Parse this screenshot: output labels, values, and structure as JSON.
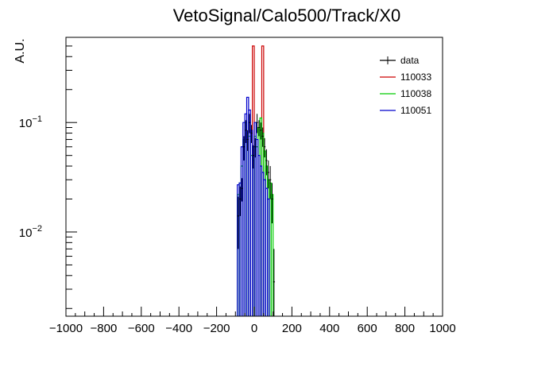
{
  "chart_data": {
    "type": "line",
    "title": "VetoSignal/Calo500/Track/X0",
    "xlabel": "",
    "ylabel": "A.U.",
    "xlim": [
      -1000,
      1000
    ],
    "ylim": [
      0.0017,
      0.6
    ],
    "y_scale": "log",
    "grid": false,
    "legend_position": "top-right",
    "x_ticks": [
      -1000,
      -800,
      -600,
      -400,
      -200,
      0,
      200,
      400,
      600,
      800,
      1000
    ],
    "y_tick_labels": [
      {
        "value": 0.1,
        "base": "10",
        "exp": "−1"
      },
      {
        "value": 0.01,
        "base": "10",
        "exp": "−2"
      }
    ],
    "series": [
      {
        "name": "data",
        "color": "#000000",
        "style": "points",
        "x": [
          -85,
          -75,
          -65,
          -55,
          -45,
          -35,
          -25,
          -15,
          -5,
          5,
          15,
          25,
          35,
          45,
          55,
          65,
          75,
          85,
          95,
          105
        ],
        "y": [
          0.014,
          0.02,
          0.025,
          0.06,
          0.085,
          0.07,
          0.1,
          0.08,
          0.05,
          0.06,
          0.1,
          0.09,
          0.085,
          0.075,
          0.06,
          0.045,
          0.035,
          0.03,
          0.02,
          0.0035
        ],
        "yerr": [
          0.007,
          0.006,
          0.006,
          0.015,
          0.02,
          0.015,
          0.02,
          0.015,
          0.012,
          0.012,
          0.02,
          0.015,
          0.015,
          0.015,
          0.012,
          0.012,
          0.01,
          0.01,
          0.008,
          0.0035
        ]
      },
      {
        "name": "110033",
        "color": "#cc0000",
        "style": "hist",
        "x": [
          -5,
          45
        ],
        "y": [
          0.5,
          0.5
        ]
      },
      {
        "name": "110038",
        "color": "#00cc00",
        "style": "hist",
        "x": [
          -85,
          -75,
          -65,
          -55,
          -45,
          -35,
          -25,
          -15,
          -5,
          5,
          15,
          25,
          35,
          45,
          55,
          65,
          75,
          85,
          95
        ],
        "y": [
          0.022,
          0.028,
          0.04,
          0.07,
          0.1,
          0.08,
          0.075,
          0.05,
          0.045,
          0.075,
          0.06,
          0.09,
          0.11,
          0.08,
          0.055,
          0.04,
          0.03,
          0.028,
          0.022
        ]
      },
      {
        "name": "110051",
        "color": "#0000cc",
        "style": "hist",
        "x": [
          -85,
          -75,
          -65,
          -55,
          -45,
          -35,
          -25,
          -15,
          -5,
          5,
          15,
          25,
          35,
          45,
          55,
          65,
          75
        ],
        "y": [
          0.027,
          0.028,
          0.06,
          0.1,
          0.12,
          0.17,
          0.13,
          0.085,
          0.06,
          0.1,
          0.07,
          0.05,
          0.04,
          0.035,
          0.03,
          0.025,
          0.02
        ]
      }
    ]
  }
}
